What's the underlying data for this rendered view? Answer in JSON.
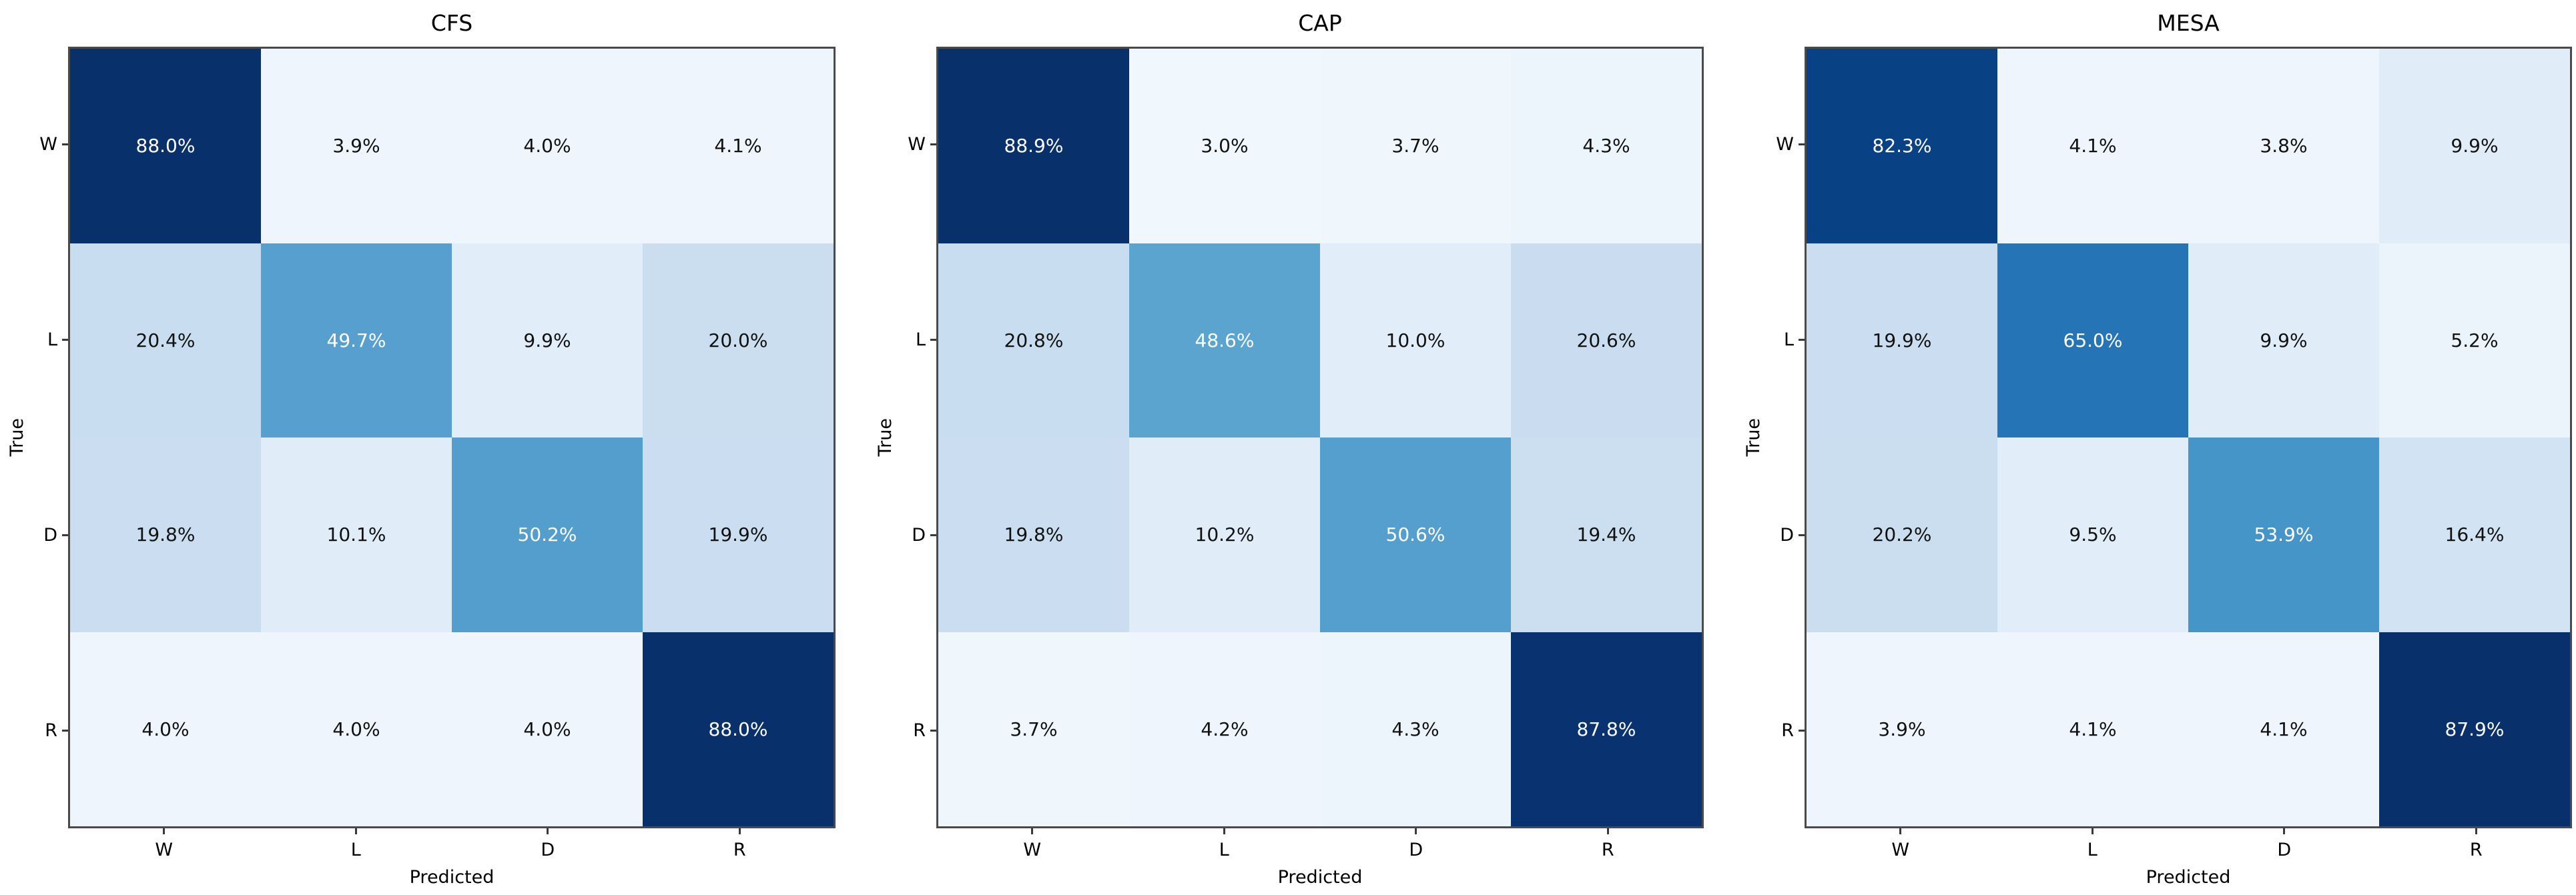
{
  "figure": {
    "tick_labels": [
      "W",
      "L",
      "D",
      "R"
    ],
    "xlabel": "Predicted",
    "ylabel": "True"
  },
  "colors": {
    "cmap_name": "Blues",
    "cmap_low": "#f7fbff",
    "cmap_high": "#08306b",
    "annotation_light": "#ffffff",
    "annotation_dark": "#111111",
    "spine": "#4a4a4a",
    "background": "#ffffff"
  },
  "chart_data": [
    {
      "type": "heatmap",
      "title": "CFS",
      "xlabel": "Predicted",
      "ylabel": "True",
      "x_categories": [
        "W",
        "L",
        "D",
        "R"
      ],
      "y_categories": [
        "W",
        "L",
        "D",
        "R"
      ],
      "values_percent": [
        [
          88.0,
          3.9,
          4.0,
          4.1
        ],
        [
          20.4,
          49.7,
          9.9,
          20.0
        ],
        [
          19.8,
          10.1,
          50.2,
          19.9
        ],
        [
          4.0,
          4.0,
          4.0,
          88.0
        ]
      ],
      "cell_label_suffix": "%",
      "colormap": "Blues",
      "legend": "none",
      "grid": false
    },
    {
      "type": "heatmap",
      "title": "CAP",
      "xlabel": "Predicted",
      "ylabel": "True",
      "x_categories": [
        "W",
        "L",
        "D",
        "R"
      ],
      "y_categories": [
        "W",
        "L",
        "D",
        "R"
      ],
      "values_percent": [
        [
          88.9,
          3.0,
          3.7,
          4.3
        ],
        [
          20.8,
          48.6,
          10.0,
          20.6
        ],
        [
          19.8,
          10.2,
          50.6,
          19.4
        ],
        [
          3.7,
          4.2,
          4.3,
          87.8
        ]
      ],
      "cell_label_suffix": "%",
      "colormap": "Blues",
      "legend": "none",
      "grid": false
    },
    {
      "type": "heatmap",
      "title": "MESA",
      "xlabel": "Predicted",
      "ylabel": "True",
      "x_categories": [
        "W",
        "L",
        "D",
        "R"
      ],
      "y_categories": [
        "W",
        "L",
        "D",
        "R"
      ],
      "values_percent": [
        [
          82.3,
          4.1,
          3.8,
          9.9
        ],
        [
          19.9,
          65.0,
          9.9,
          5.2
        ],
        [
          20.2,
          9.5,
          53.9,
          16.4
        ],
        [
          3.9,
          4.1,
          4.1,
          87.9
        ]
      ],
      "cell_label_suffix": "%",
      "colormap": "Blues",
      "legend": "none",
      "grid": false
    }
  ]
}
